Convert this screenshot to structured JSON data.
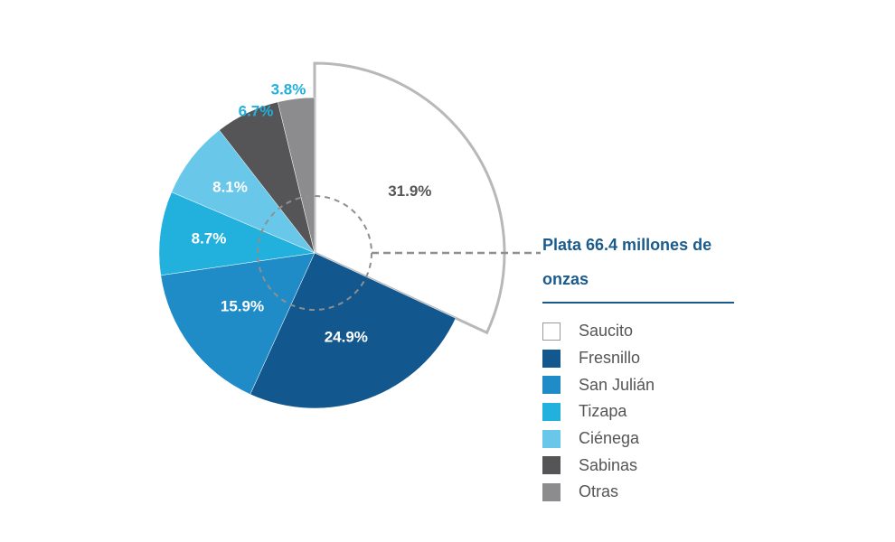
{
  "chart_data": {
    "type": "pie",
    "title": "Plata 66.4 millones de onzas",
    "slices": [
      {
        "label": "Saucito",
        "value": 31.9,
        "value_label": "31.9%",
        "color": "#ffffff",
        "label_color": "#555555"
      },
      {
        "label": "Fresnillo",
        "value": 24.9,
        "value_label": "24.9%",
        "color": "#12578d",
        "label_color": "#ffffff"
      },
      {
        "label": "San Julián",
        "value": 15.9,
        "value_label": "15.9%",
        "color": "#1f8cc8",
        "label_color": "#ffffff"
      },
      {
        "label": "Tizapa",
        "value": 8.7,
        "value_label": "8.7%",
        "color": "#22b0dc",
        "label_color": "#ffffff"
      },
      {
        "label": "Ciénega",
        "value": 8.1,
        "value_label": "8.1%",
        "color": "#69c7ea",
        "label_color": "#ffffff"
      },
      {
        "label": "Sabinas",
        "value": 6.7,
        "value_label": "6.7%",
        "color": "#555557",
        "label_color": "#22b0dc"
      },
      {
        "label": "Otras",
        "value": 3.8,
        "value_label": "3.8%",
        "color": "#8c8c8e",
        "label_color": "#22b0dc"
      }
    ],
    "exploded_slice": "Saucito",
    "legend_position": "right"
  },
  "legend": {
    "title": "Plata 66.4 millones de onzas"
  }
}
